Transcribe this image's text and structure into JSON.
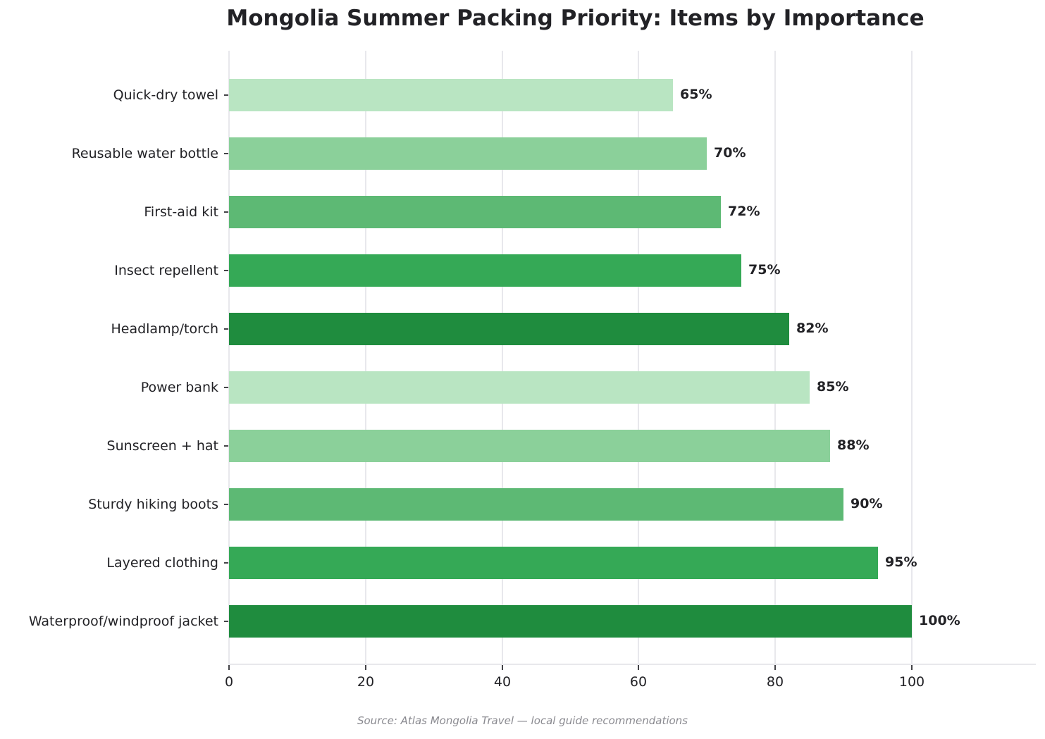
{
  "title": "Mongolia Summer Packing Priority: Items by Importance",
  "source": "Source: Atlas Mongolia Travel — local guide recommendations",
  "colors": {
    "palette": [
      "#b9e5c2",
      "#8bd09a",
      "#5db974",
      "#35a956",
      "#1f8c3e"
    ],
    "text": "#222226",
    "grid": "#e8e8ec",
    "source_text": "#8a8a90"
  },
  "x_axis": {
    "ticks": [
      "0",
      "20",
      "40",
      "60",
      "80",
      "100"
    ]
  },
  "bars": [
    {
      "label": "Quick-dry towel",
      "value": 65,
      "value_label": "65%",
      "color": "#b9e5c2"
    },
    {
      "label": "Reusable water bottle",
      "value": 70,
      "value_label": "70%",
      "color": "#8bd09a"
    },
    {
      "label": "First-aid kit",
      "value": 72,
      "value_label": "72%",
      "color": "#5db974"
    },
    {
      "label": "Insect repellent",
      "value": 75,
      "value_label": "75%",
      "color": "#35a956"
    },
    {
      "label": "Headlamp/torch",
      "value": 82,
      "value_label": "82%",
      "color": "#1f8c3e"
    },
    {
      "label": "Power bank",
      "value": 85,
      "value_label": "85%",
      "color": "#b9e5c2"
    },
    {
      "label": "Sunscreen + hat",
      "value": 88,
      "value_label": "88%",
      "color": "#8bd09a"
    },
    {
      "label": "Sturdy hiking boots",
      "value": 90,
      "value_label": "90%",
      "color": "#5db974"
    },
    {
      "label": "Layered clothing",
      "value": 95,
      "value_label": "95%",
      "color": "#35a956"
    },
    {
      "label": "Waterproof/windproof jacket",
      "value": 100,
      "value_label": "100%",
      "color": "#1f8c3e"
    }
  ],
  "chart_data": {
    "type": "bar",
    "orientation": "horizontal",
    "title": "Mongolia Summer Packing Priority: Items by Importance",
    "xlabel": "",
    "ylabel": "",
    "categories": [
      "Quick-dry towel",
      "Reusable water bottle",
      "First-aid kit",
      "Insect repellent",
      "Headlamp/torch",
      "Power bank",
      "Sunscreen + hat",
      "Sturdy hiking boots",
      "Layered clothing",
      "Waterproof/windproof jacket"
    ],
    "values": [
      65,
      70,
      72,
      75,
      82,
      85,
      88,
      90,
      95,
      100
    ],
    "data_labels": [
      "65%",
      "70%",
      "72%",
      "75%",
      "82%",
      "85%",
      "88%",
      "90%",
      "95%",
      "100%"
    ],
    "xlim": [
      0,
      118
    ],
    "xticks": [
      0,
      20,
      40,
      60,
      80,
      100
    ],
    "grid": {
      "x": true,
      "y": false
    },
    "legend": null,
    "annotation": "Source: Atlas Mongolia Travel — local guide recommendations",
    "bar_colors": [
      "#b9e5c2",
      "#8bd09a",
      "#5db974",
      "#35a956",
      "#1f8c3e",
      "#b9e5c2",
      "#8bd09a",
      "#5db974",
      "#35a956",
      "#1f8c3e"
    ]
  }
}
